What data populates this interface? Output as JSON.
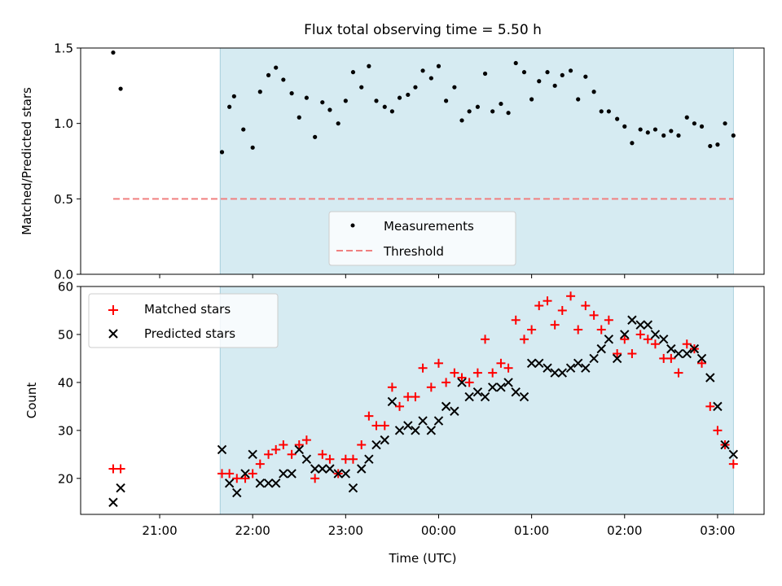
{
  "chart_data": [
    {
      "type": "scatter",
      "title": "Flux total observing time = 5.50 h",
      "ylabel": "Matched/Predicted stars",
      "xlabel": "",
      "ylim": [
        0,
        1.5
      ],
      "yticks": [
        "0.0",
        "0.5",
        "1.0",
        "1.5"
      ],
      "xlim_hours": [
        -3.85,
        3.5
      ],
      "shaded_span_hours": [
        -2.35,
        3.17
      ],
      "threshold": 0.5,
      "legend_position": "lower-center",
      "series": [
        {
          "name": "Measurements",
          "marker": "dot",
          "color": "#000000",
          "x": [
            -3.5,
            -3.42,
            -2.33,
            -2.25,
            -2.2,
            -2.1,
            -2.0,
            -1.92,
            -1.83,
            -1.75,
            -1.67,
            -1.58,
            -1.5,
            -1.42,
            -1.33,
            -1.25,
            -1.17,
            -1.08,
            -1.0,
            -0.92,
            -0.83,
            -0.75,
            -0.67,
            -0.58,
            -0.5,
            -0.42,
            -0.33,
            -0.25,
            -0.17,
            -0.08,
            0.0,
            0.08,
            0.17,
            0.25,
            0.33,
            0.42,
            0.5,
            0.58,
            0.67,
            0.75,
            0.83,
            0.92,
            1.0,
            1.08,
            1.17,
            1.25,
            1.33,
            1.42,
            1.5,
            1.58,
            1.67,
            1.75,
            1.83,
            1.92,
            2.0,
            2.08,
            2.17,
            2.25,
            2.33,
            2.42,
            2.5,
            2.58,
            2.67,
            2.75,
            2.83,
            2.92,
            3.0,
            3.08,
            3.17
          ],
          "y": [
            1.47,
            1.23,
            0.81,
            1.11,
            1.18,
            0.96,
            0.84,
            1.21,
            1.32,
            1.37,
            1.29,
            1.2,
            1.04,
            1.17,
            0.91,
            1.14,
            1.09,
            1.0,
            1.15,
            1.34,
            1.24,
            1.38,
            1.15,
            1.11,
            1.08,
            1.17,
            1.19,
            1.24,
            1.35,
            1.3,
            1.38,
            1.15,
            1.24,
            1.02,
            1.08,
            1.11,
            1.33,
            1.08,
            1.13,
            1.07,
            1.4,
            1.34,
            1.16,
            1.28,
            1.34,
            1.25,
            1.32,
            1.35,
            1.16,
            1.31,
            1.21,
            1.08,
            1.08,
            1.03,
            0.98,
            0.87,
            0.96,
            0.94,
            0.96,
            0.92,
            0.95,
            0.92,
            1.04,
            1.0,
            0.98,
            0.85,
            0.86,
            1.0,
            0.92
          ]
        },
        {
          "name": "Threshold",
          "marker": "dashed-line",
          "color": "#f08080"
        }
      ]
    },
    {
      "type": "scatter",
      "title": "",
      "ylabel": "Count",
      "xlabel": "Time (UTC)",
      "ylim": [
        12.5,
        60
      ],
      "yticks": [
        "20",
        "30",
        "40",
        "50",
        "60"
      ],
      "xlim_hours": [
        -3.85,
        3.5
      ],
      "xticks_hours": [
        -3,
        -2,
        -1,
        0,
        1,
        2,
        3
      ],
      "xtick_labels": [
        "21:00",
        "22:00",
        "23:00",
        "00:00",
        "01:00",
        "02:00",
        "03:00"
      ],
      "shaded_span_hours": [
        -2.35,
        3.17
      ],
      "legend_position": "upper-left",
      "series": [
        {
          "name": "Matched stars",
          "marker": "plus",
          "color": "#ff0000",
          "x": [
            -3.5,
            -3.42,
            -2.33,
            -2.25,
            -2.17,
            -2.08,
            -2.0,
            -1.92,
            -1.83,
            -1.75,
            -1.67,
            -1.58,
            -1.5,
            -1.42,
            -1.33,
            -1.25,
            -1.17,
            -1.08,
            -1.0,
            -0.92,
            -0.83,
            -0.75,
            -0.67,
            -0.58,
            -0.5,
            -0.42,
            -0.33,
            -0.25,
            -0.17,
            -0.08,
            0.0,
            0.08,
            0.17,
            0.25,
            0.33,
            0.42,
            0.5,
            0.58,
            0.67,
            0.75,
            0.83,
            0.92,
            1.0,
            1.08,
            1.17,
            1.25,
            1.33,
            1.42,
            1.5,
            1.58,
            1.67,
            1.75,
            1.83,
            1.92,
            2.0,
            2.08,
            2.17,
            2.25,
            2.33,
            2.42,
            2.5,
            2.58,
            2.67,
            2.75,
            2.83,
            2.92,
            3.0,
            3.08,
            3.17
          ],
          "y": [
            22,
            22,
            21,
            21,
            20,
            20,
            21,
            23,
            25,
            26,
            27,
            25,
            27,
            28,
            20,
            25,
            24,
            21,
            24,
            24,
            27,
            33,
            31,
            31,
            39,
            35,
            37,
            37,
            43,
            39,
            44,
            40,
            42,
            41,
            40,
            42,
            49,
            42,
            44,
            43,
            53,
            49,
            51,
            56,
            57,
            52,
            55,
            58,
            51,
            56,
            54,
            51,
            53,
            46,
            49,
            46,
            50,
            49,
            48,
            45,
            45,
            42,
            48,
            47,
            44,
            35,
            30,
            27,
            23
          ]
        },
        {
          "name": "Predicted stars",
          "marker": "x",
          "color": "#000000",
          "x": [
            -3.5,
            -3.42,
            -2.33,
            -2.25,
            -2.17,
            -2.08,
            -2.0,
            -1.92,
            -1.83,
            -1.75,
            -1.67,
            -1.58,
            -1.5,
            -1.42,
            -1.33,
            -1.25,
            -1.17,
            -1.08,
            -1.0,
            -0.92,
            -0.83,
            -0.75,
            -0.67,
            -0.58,
            -0.5,
            -0.42,
            -0.33,
            -0.25,
            -0.17,
            -0.08,
            0.0,
            0.08,
            0.17,
            0.25,
            0.33,
            0.42,
            0.5,
            0.58,
            0.67,
            0.75,
            0.83,
            0.92,
            1.0,
            1.08,
            1.17,
            1.25,
            1.33,
            1.42,
            1.5,
            1.58,
            1.67,
            1.75,
            1.83,
            1.92,
            2.0,
            2.08,
            2.17,
            2.25,
            2.33,
            2.42,
            2.5,
            2.58,
            2.67,
            2.75,
            2.83,
            2.92,
            3.0,
            3.08,
            3.17
          ],
          "y": [
            15,
            18,
            26,
            19,
            17,
            21,
            25,
            19,
            19,
            19,
            21,
            21,
            26,
            24,
            22,
            22,
            22,
            21,
            21,
            18,
            22,
            24,
            27,
            28,
            36,
            30,
            31,
            30,
            32,
            30,
            32,
            35,
            34,
            40,
            37,
            38,
            37,
            39,
            39,
            40,
            38,
            37,
            44,
            44,
            43,
            42,
            42,
            43,
            44,
            43,
            45,
            47,
            49,
            45,
            50,
            53,
            52,
            52,
            50,
            49,
            47,
            46,
            46,
            47,
            45,
            41,
            35,
            27,
            25
          ]
        }
      ]
    }
  ]
}
